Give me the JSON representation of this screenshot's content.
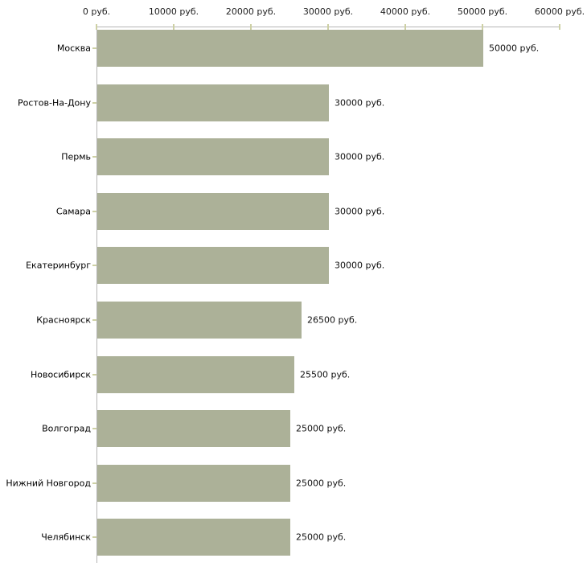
{
  "chart_data": {
    "type": "bar",
    "orientation": "horizontal",
    "title": "",
    "xlabel": "",
    "ylabel": "",
    "xlim": [
      0,
      60000
    ],
    "grid": false,
    "legend": null,
    "categories": [
      "Москва",
      "Ростов-На-Дону",
      "Пермь",
      "Самара",
      "Екатеринбург",
      "Красноярск",
      "Новосибирск",
      "Волгоград",
      "Нижний Новгород",
      "Челябинск"
    ],
    "values": [
      50000,
      30000,
      30000,
      30000,
      30000,
      26500,
      25500,
      25000,
      25000,
      25000
    ],
    "value_labels": [
      "50000 руб.",
      "30000 руб.",
      "30000 руб.",
      "30000 руб.",
      "30000 руб.",
      "26500 руб.",
      "25500 руб.",
      "25000 руб.",
      "25000 руб.",
      "25000 руб."
    ],
    "x_ticks": [
      {
        "value": 0,
        "label": "0 руб."
      },
      {
        "value": 10000,
        "label": "10000 руб."
      },
      {
        "value": 20000,
        "label": "20000 руб."
      },
      {
        "value": 30000,
        "label": "30000 руб."
      },
      {
        "value": 40000,
        "label": "40000 руб."
      },
      {
        "value": 50000,
        "label": "50000 руб."
      },
      {
        "value": 60000,
        "label": "60000 руб."
      }
    ],
    "colors": {
      "bar": "#acb198",
      "axis_line": "#b5b5b5",
      "tick_mark": "#cdd0a4",
      "text": "#111111",
      "background": "#ffffff"
    }
  }
}
